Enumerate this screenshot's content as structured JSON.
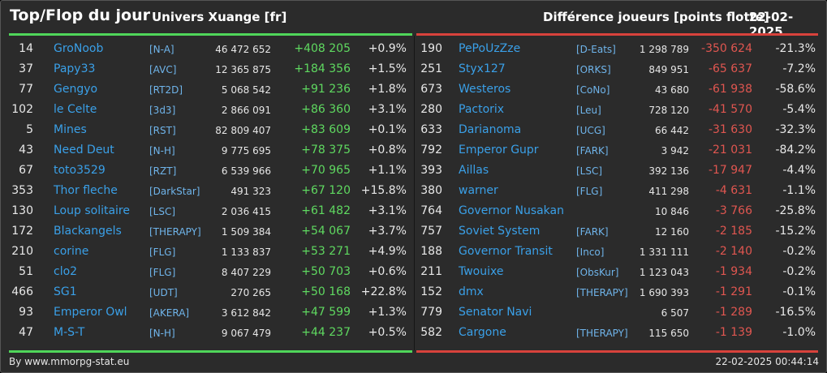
{
  "header": {
    "title": "Top/Flop du jour",
    "server": "Univers Xuange [fr]",
    "metric": "Différence joueurs [points flotte]",
    "date": "22-02-2025"
  },
  "colors": {
    "gain": "#5fd960",
    "loss": "#e05650",
    "name": "#3aa0e8",
    "top_bar": "#4fd65a",
    "flop_bar": "#d8423c"
  },
  "top": [
    {
      "rank": "14",
      "name": "GroNoob",
      "guild": "[N-A]",
      "score": "46 472 652",
      "diff": "+408 205",
      "pct": "+0.9%"
    },
    {
      "rank": "37",
      "name": "Papy33",
      "guild": "[AVC]",
      "score": "12 365 875",
      "diff": "+184 356",
      "pct": "+1.5%"
    },
    {
      "rank": "77",
      "name": "Gengyo",
      "guild": "[RT2D]",
      "score": "5 068 542",
      "diff": "+91 236",
      "pct": "+1.8%"
    },
    {
      "rank": "102",
      "name": "le Celte",
      "guild": "[3d3]",
      "score": "2 866 091",
      "diff": "+86 360",
      "pct": "+3.1%"
    },
    {
      "rank": "5",
      "name": "Mines",
      "guild": "[RST]",
      "score": "82 809 407",
      "diff": "+83 609",
      "pct": "+0.1%"
    },
    {
      "rank": "43",
      "name": "Need Deut",
      "guild": "[N-H]",
      "score": "9 775 695",
      "diff": "+78 375",
      "pct": "+0.8%"
    },
    {
      "rank": "67",
      "name": "toto3529",
      "guild": "[RZT]",
      "score": "6 539 966",
      "diff": "+70 965",
      "pct": "+1.1%"
    },
    {
      "rank": "353",
      "name": "Thor fleche",
      "guild": "[DarkStar]",
      "score": "491 323",
      "diff": "+67 120",
      "pct": "+15.8%"
    },
    {
      "rank": "130",
      "name": "Loup solitaire",
      "guild": "[LSC]",
      "score": "2 036 415",
      "diff": "+61 482",
      "pct": "+3.1%"
    },
    {
      "rank": "172",
      "name": "Blackangels",
      "guild": "[THERAPY]",
      "score": "1 509 384",
      "diff": "+54 067",
      "pct": "+3.7%"
    },
    {
      "rank": "210",
      "name": "corine",
      "guild": "[FLG]",
      "score": "1 133 837",
      "diff": "+53 271",
      "pct": "+4.9%"
    },
    {
      "rank": "51",
      "name": "clo2",
      "guild": "[FLG]",
      "score": "8 407 229",
      "diff": "+50 703",
      "pct": "+0.6%"
    },
    {
      "rank": "466",
      "name": "SG1",
      "guild": "[UDT]",
      "score": "270 265",
      "diff": "+50 168",
      "pct": "+22.8%"
    },
    {
      "rank": "93",
      "name": "Emperor Owl",
      "guild": "[AKERA]",
      "score": "3 612 842",
      "diff": "+47 599",
      "pct": "+1.3%"
    },
    {
      "rank": "47",
      "name": "M-S-T",
      "guild": "[N-H]",
      "score": "9 067 479",
      "diff": "+44 237",
      "pct": "+0.5%"
    }
  ],
  "flop": [
    {
      "rank": "190",
      "name": "PePoUzZze",
      "guild": "[D-Eats]",
      "score": "1 298 789",
      "diff": "-350 624",
      "pct": "-21.3%"
    },
    {
      "rank": "251",
      "name": "Styx127",
      "guild": "[ORKS]",
      "score": "849 951",
      "diff": "-65 637",
      "pct": "-7.2%"
    },
    {
      "rank": "673",
      "name": "Westeros",
      "guild": "[CoNo]",
      "score": "43 680",
      "diff": "-61 938",
      "pct": "-58.6%"
    },
    {
      "rank": "280",
      "name": "Pactorix",
      "guild": "[Leu]",
      "score": "728 120",
      "diff": "-41 570",
      "pct": "-5.4%"
    },
    {
      "rank": "633",
      "name": "Darianoma",
      "guild": "[UCG]",
      "score": "66 442",
      "diff": "-31 630",
      "pct": "-32.3%"
    },
    {
      "rank": "792",
      "name": "Emperor Gupr",
      "guild": "[FARK]",
      "score": "3 942",
      "diff": "-21 031",
      "pct": "-84.2%"
    },
    {
      "rank": "393",
      "name": "Aillas",
      "guild": "[LSC]",
      "score": "392 136",
      "diff": "-17 947",
      "pct": "-4.4%"
    },
    {
      "rank": "380",
      "name": "warner",
      "guild": "[FLG]",
      "score": "411 298",
      "diff": "-4 631",
      "pct": "-1.1%"
    },
    {
      "rank": "764",
      "name": "Governor Nusakan",
      "guild": "",
      "score": "10 846",
      "diff": "-3 766",
      "pct": "-25.8%"
    },
    {
      "rank": "757",
      "name": "Soviet System",
      "guild": "[FARK]",
      "score": "12 160",
      "diff": "-2 185",
      "pct": "-15.2%"
    },
    {
      "rank": "188",
      "name": "Governor Transit",
      "guild": "[Inco]",
      "score": "1 331 111",
      "diff": "-2 140",
      "pct": "-0.2%"
    },
    {
      "rank": "211",
      "name": "Twouixe",
      "guild": "[ObsKur]",
      "score": "1 123 043",
      "diff": "-1 934",
      "pct": "-0.2%"
    },
    {
      "rank": "152",
      "name": "dmx",
      "guild": "[THERAPY]",
      "score": "1 690 393",
      "diff": "-1 291",
      "pct": "-0.1%"
    },
    {
      "rank": "779",
      "name": "Senator Navi",
      "guild": "",
      "score": "6 507",
      "diff": "-1 289",
      "pct": "-16.5%"
    },
    {
      "rank": "582",
      "name": "Cargone",
      "guild": "[THERAPY]",
      "score": "115 650",
      "diff": "-1 139",
      "pct": "-1.0%"
    }
  ],
  "footer": {
    "source": "By www.mmorpg-stat.eu",
    "timestamp": "22-02-2025 00:44:14"
  }
}
